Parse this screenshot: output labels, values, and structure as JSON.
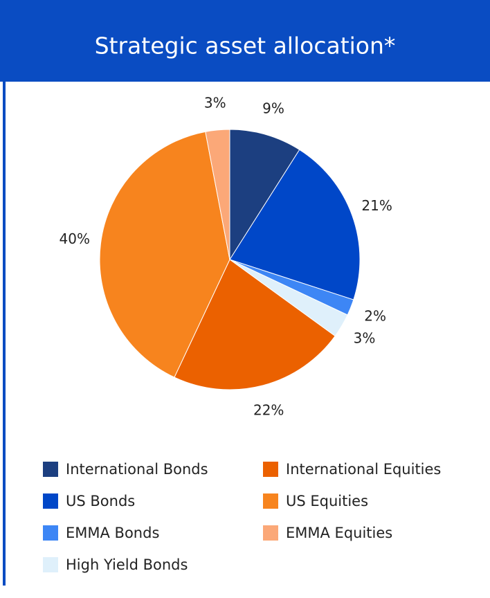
{
  "chart_data": {
    "type": "pie",
    "title": "Strategic asset allocation*",
    "categories": [
      "International Bonds",
      "US Bonds",
      "EMMA Bonds",
      "High Yield Bonds",
      "International Equities",
      "US Equities",
      "EMMA Equities"
    ],
    "values": [
      9,
      21,
      2,
      3,
      22,
      40,
      3
    ],
    "value_labels": [
      "9%",
      "21%",
      "2%",
      "3%",
      "22%",
      "40%",
      "3%"
    ],
    "colors": [
      "#1c3f80",
      "#0047c8",
      "#3d86f5",
      "#dff0fb",
      "#eb6100",
      "#f7841e",
      "#fba878"
    ]
  }
}
